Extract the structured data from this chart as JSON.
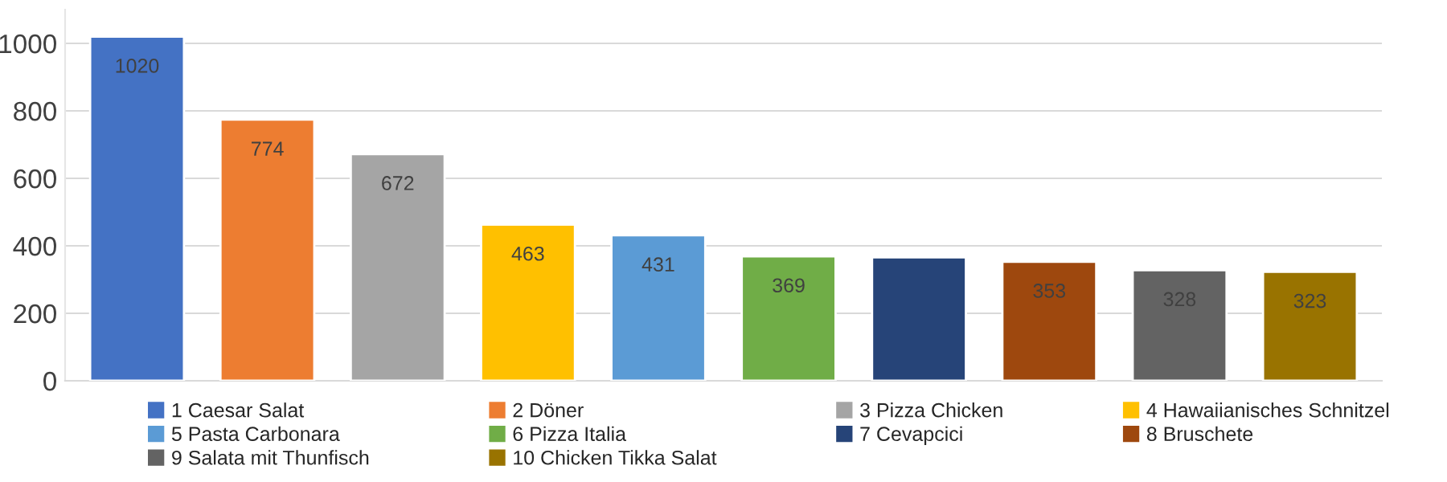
{
  "chart_data": {
    "type": "bar",
    "categories": [
      null
    ],
    "series": [
      {
        "name": "1 Caesar Salat",
        "color": "#4472c4",
        "values": [
          1020
        ],
        "value_labels": [
          "1020"
        ]
      },
      {
        "name": "2 Döner",
        "color": "#ed7d31",
        "values": [
          774
        ],
        "value_labels": [
          "774"
        ]
      },
      {
        "name": "3 Pizza Chicken",
        "color": "#a5a5a5",
        "values": [
          672
        ],
        "value_labels": [
          "672"
        ]
      },
      {
        "name": "4 Hawaiianisches Schnitzel",
        "color": "#ffc000",
        "values": [
          463
        ],
        "value_labels": [
          "463"
        ]
      },
      {
        "name": "5 Pasta Carbonara",
        "color": "#5b9bd5",
        "values": [
          431
        ],
        "value_labels": [
          "431"
        ]
      },
      {
        "name": "6 Pizza Italia",
        "color": "#70ad47",
        "values": [
          369
        ],
        "value_labels": [
          "369"
        ]
      },
      {
        "name": "7 Cevapcici",
        "color": "#264478",
        "values": [
          366
        ],
        "value_labels": [
          null
        ]
      },
      {
        "name": "8 Bruschete",
        "color": "#9e480e",
        "values": [
          353
        ],
        "value_labels": [
          "353"
        ]
      },
      {
        "name": "9 Salata mit Thunfisch",
        "color": "#636363",
        "values": [
          328
        ],
        "value_labels": [
          "328"
        ]
      },
      {
        "name": "10 Chicken Tikka Salat",
        "color": "#997300",
        "values": [
          323
        ],
        "value_labels": [
          "323"
        ]
      }
    ],
    "ylim": [
      0,
      1100
    ],
    "yticks": [
      0,
      200,
      400,
      600,
      800,
      1000
    ],
    "grid": "y",
    "legend": "bottom"
  }
}
